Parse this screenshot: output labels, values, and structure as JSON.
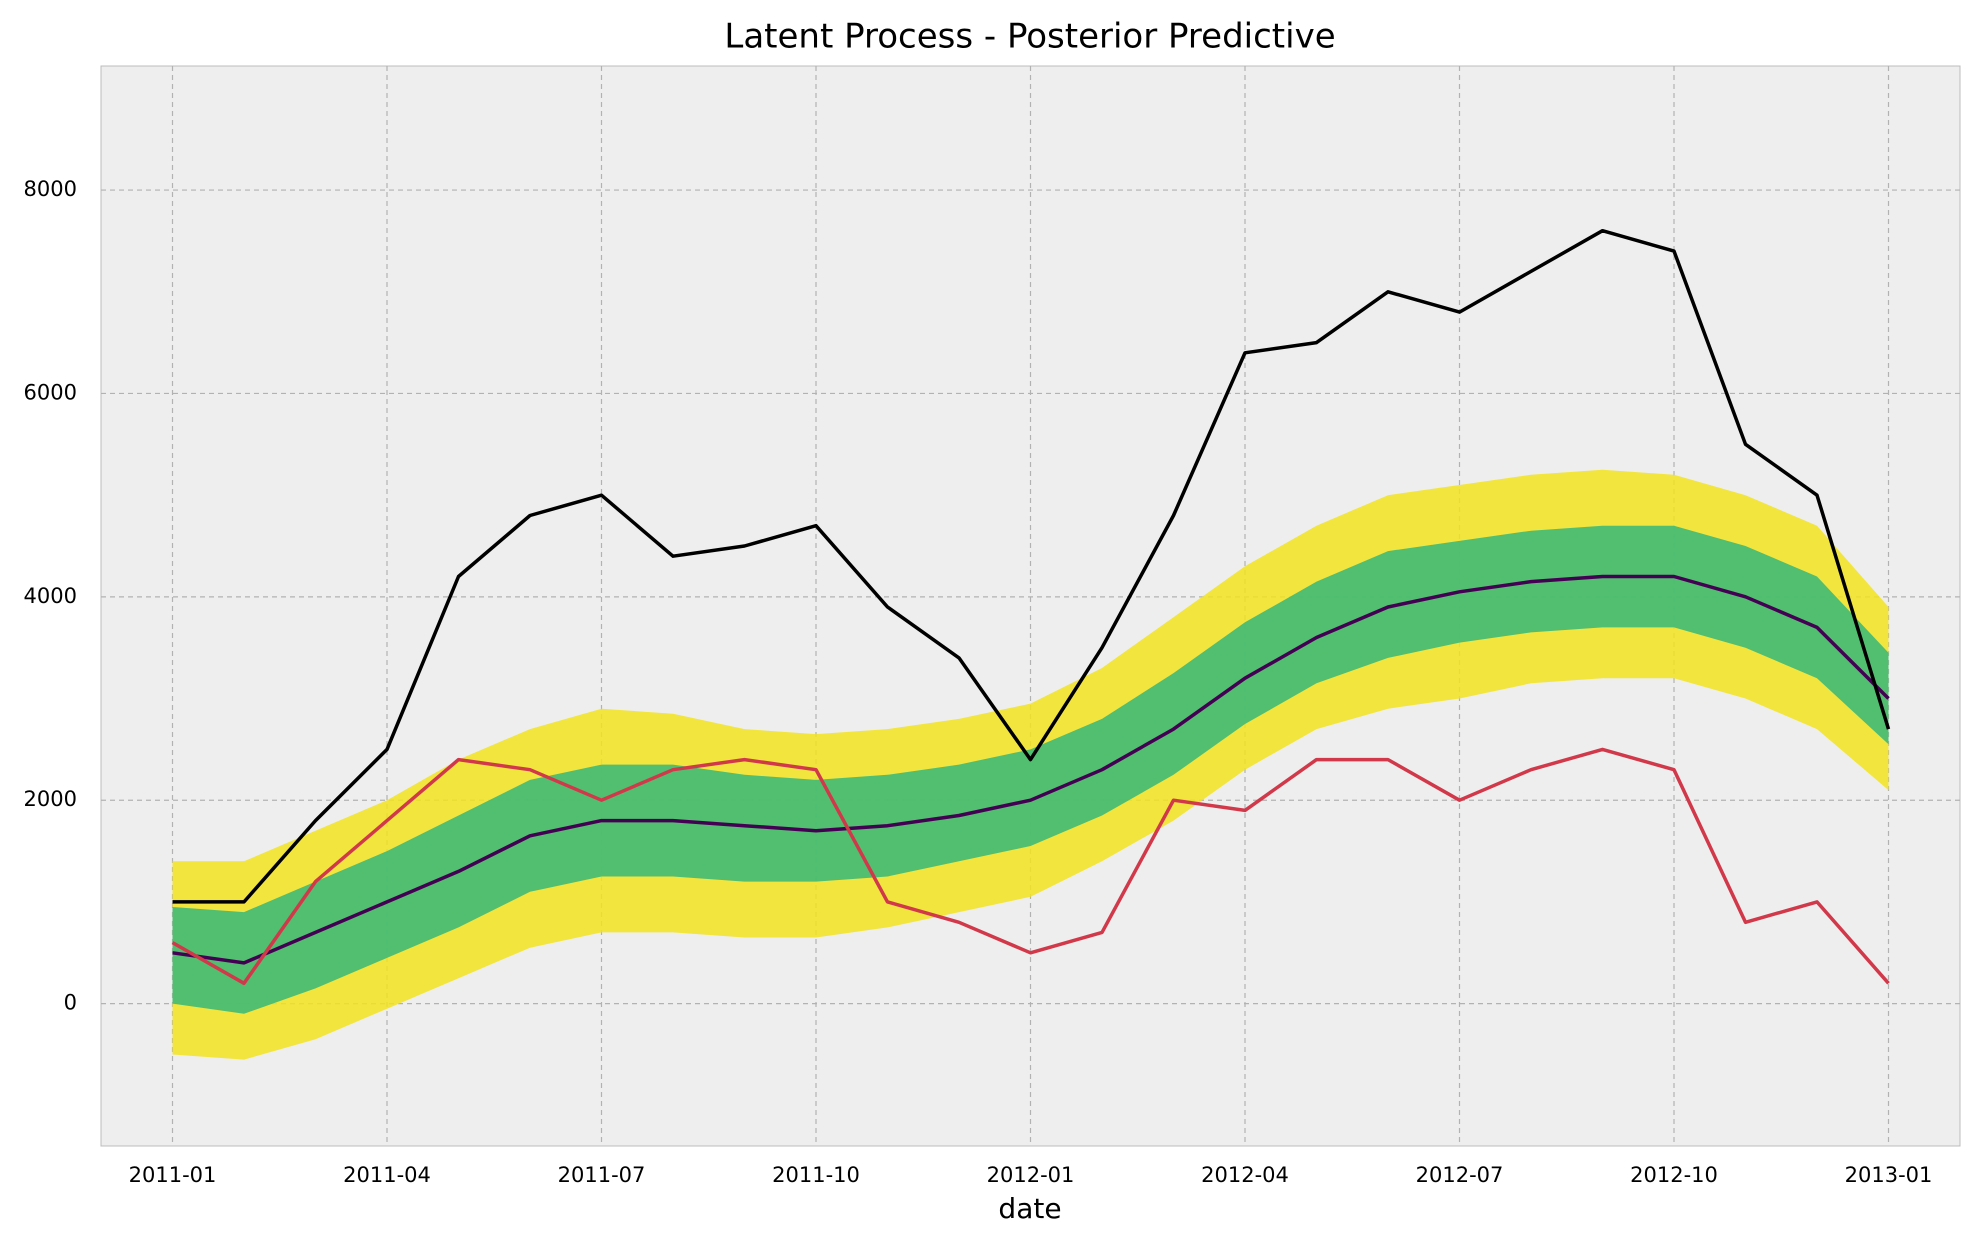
{
  "chart_data": {
    "type": "line",
    "title": "Latent Process - Posterior Predictive",
    "x_label": "date",
    "x": [
      "2011-01",
      "2011-02",
      "2011-03",
      "2011-04",
      "2011-05",
      "2011-06",
      "2011-07",
      "2011-08",
      "2011-09",
      "2011-10",
      "2011-11",
      "2011-12",
      "2012-01",
      "2012-02",
      "2012-03",
      "2012-04",
      "2012-05",
      "2012-06",
      "2012-07",
      "2012-08",
      "2012-09",
      "2012-10",
      "2012-11",
      "2012-12",
      "2013-01"
    ],
    "xlim": [
      "2010-12",
      "2013-02"
    ],
    "xticks": [
      "2011-01",
      "2011-04",
      "2011-07",
      "2011-10",
      "2012-01",
      "2012-04",
      "2012-07",
      "2012-10",
      "2013-01"
    ],
    "ylim": [
      -1400,
      9220
    ],
    "yticks": [
      0,
      2000,
      4000,
      6000,
      8000
    ],
    "grid": true,
    "bands": [
      {
        "color": "#f2e31e",
        "upper": [
          1400,
          1400,
          1700,
          2000,
          2400,
          2700,
          2900,
          2850,
          2700,
          2650,
          2700,
          2800,
          2950,
          3300,
          3800,
          4300,
          4700,
          5000,
          5100,
          5200,
          5250,
          5200,
          5000,
          4700,
          3900
        ],
        "lower": [
          -500,
          -550,
          -350,
          -50,
          250,
          550,
          700,
          700,
          650,
          650,
          750,
          900,
          1050,
          1400,
          1800,
          2300,
          2700,
          2900,
          3000,
          3150,
          3200,
          3200,
          3000,
          2700,
          2100
        ]
      },
      {
        "color": "#35b779",
        "upper": [
          950,
          900,
          1200,
          1500,
          1850,
          2200,
          2350,
          2350,
          2250,
          2200,
          2250,
          2350,
          2500,
          2800,
          3250,
          3750,
          4150,
          4450,
          4550,
          4650,
          4700,
          4700,
          4500,
          4200,
          3450
        ],
        "lower": [
          0,
          -100,
          150,
          450,
          750,
          1100,
          1250,
          1250,
          1200,
          1200,
          1250,
          1400,
          1550,
          1850,
          2250,
          2750,
          3150,
          3400,
          3550,
          3650,
          3700,
          3700,
          3500,
          3200,
          2550
        ]
      }
    ],
    "series": [
      {
        "color": "#440154",
        "values": [
          500,
          400,
          700,
          1000,
          1300,
          1650,
          1800,
          1800,
          1750,
          1700,
          1750,
          1850,
          2000,
          2300,
          2700,
          3200,
          3600,
          3900,
          4050,
          4150,
          4200,
          4200,
          4000,
          3700,
          3000
        ]
      },
      {
        "color": "#d1394a",
        "values": [
          600,
          200,
          1200,
          1800,
          2400,
          2300,
          2000,
          2300,
          2400,
          2300,
          1000,
          800,
          500,
          700,
          2000,
          1900,
          2400,
          2400,
          2000,
          2300,
          2500,
          2300,
          800,
          1000,
          200
        ]
      },
      {
        "color": "#000000",
        "values": [
          1000,
          1000,
          1800,
          2500,
          4200,
          4800,
          5000,
          4400,
          4500,
          4700,
          3900,
          3400,
          2400,
          3500,
          4800,
          6400,
          6500,
          7000,
          6800,
          7200,
          7600,
          7400,
          5500,
          5000,
          2700
        ]
      }
    ]
  }
}
